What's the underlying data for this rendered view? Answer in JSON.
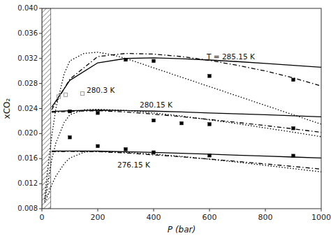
{
  "chart_data": {
    "type": "line",
    "xlabel": "P (bar)",
    "ylabel": "xCO₂",
    "xlim": [
      0,
      1000
    ],
    "ylim": [
      0.008,
      0.04
    ],
    "xticks": [
      0,
      200,
      400,
      600,
      800,
      1000
    ],
    "yticks": [
      0.008,
      0.012,
      0.016,
      {
        "value": 0.02,
        "label": "0.020"
      },
      0.024,
      0.028,
      0.032,
      0.036,
      {
        "value": 0.04,
        "label": "0.040"
      }
    ],
    "grid": false,
    "series": [
      {
        "type": "band",
        "color": "black",
        "x": [
          0,
          32
        ]
      },
      {
        "type": "line",
        "color": "black",
        "line_style": "solid",
        "x": [
          35,
          100,
          200,
          300,
          400,
          500,
          600,
          700,
          800,
          900,
          1000
        ],
        "values": [
          0.0242,
          0.0285,
          0.0313,
          0.032,
          0.0321,
          0.03195,
          0.03175,
          0.0315,
          0.0312,
          0.0309,
          0.0306
        ]
      },
      {
        "type": "line",
        "color": "black",
        "line_style": "dashdot",
        "x": [
          35,
          100,
          200,
          300,
          400,
          500,
          600,
          700,
          800,
          900,
          1000
        ],
        "values": [
          0.0238,
          0.0287,
          0.0323,
          0.0328,
          0.0327,
          0.0323,
          0.0317,
          0.0309,
          0.03,
          0.0289,
          0.0276
        ]
      },
      {
        "type": "line",
        "color": "black",
        "line_style": "dotted",
        "x": [
          10,
          20,
          35,
          50,
          80,
          100,
          150,
          200,
          250,
          300,
          400,
          500,
          600,
          700,
          800,
          900,
          1000
        ],
        "values": [
          0.0095,
          0.014,
          0.0195,
          0.024,
          0.0296,
          0.0316,
          0.0328,
          0.033,
          0.0326,
          0.032,
          0.0305,
          0.029,
          0.0275,
          0.026,
          0.0245,
          0.023,
          0.0215
        ]
      },
      {
        "type": "scatter",
        "color": "black",
        "marker": "square",
        "x": [
          300,
          400,
          600,
          900
        ],
        "values": [
          0.0318,
          0.0316,
          0.0292,
          0.0286
        ]
      },
      {
        "type": "line",
        "color": "black",
        "line_style": "solid",
        "x": [
          35,
          100,
          200,
          300,
          400,
          500,
          600,
          700,
          800,
          900,
          1000
        ],
        "values": [
          0.02355,
          0.02365,
          0.02375,
          0.02368,
          0.02358,
          0.02345,
          0.0233,
          0.02315,
          0.023,
          0.02285,
          0.02268
        ]
      },
      {
        "type": "line",
        "color": "black",
        "line_style": "dashdot",
        "x": [
          35,
          100,
          200,
          300,
          400,
          500,
          600,
          700,
          800,
          900,
          1000
        ],
        "values": [
          0.0234,
          0.02355,
          0.02365,
          0.02345,
          0.0231,
          0.0227,
          0.02225,
          0.02178,
          0.02128,
          0.02075,
          0.0202
        ]
      },
      {
        "type": "line",
        "color": "black",
        "line_style": "dotted",
        "x": [
          10,
          20,
          35,
          50,
          80,
          100,
          150,
          175,
          200,
          300,
          400,
          500,
          600,
          700,
          800,
          900,
          1000
        ],
        "values": [
          0.0092,
          0.0118,
          0.0158,
          0.0185,
          0.0218,
          0.023,
          0.0238,
          0.02385,
          0.02388,
          0.0237,
          0.0233,
          0.0228,
          0.0222,
          0.02158,
          0.0209,
          0.02022,
          0.0195
        ]
      },
      {
        "type": "scatter",
        "color": "black",
        "marker": "square",
        "x": [
          100,
          200,
          400,
          500,
          600,
          900
        ],
        "values": [
          0.02355,
          0.0233,
          0.0221,
          0.02165,
          0.0215,
          0.02085
        ]
      },
      {
        "type": "line",
        "color": "black",
        "line_style": "solid",
        "x": [
          35,
          100,
          200,
          300,
          400,
          500,
          600,
          700,
          800,
          900,
          1000
        ],
        "values": [
          0.0172,
          0.01722,
          0.0172,
          0.0171,
          0.01698,
          0.01685,
          0.0167,
          0.01655,
          0.0164,
          0.01625,
          0.0161
        ]
      },
      {
        "type": "line",
        "color": "black",
        "line_style": "dashdot",
        "x": [
          35,
          100,
          200,
          300,
          400,
          500,
          600,
          700,
          800,
          900,
          1000
        ],
        "values": [
          0.0171,
          0.01715,
          0.0171,
          0.0169,
          0.0166,
          0.01628,
          0.01592,
          0.01555,
          0.01515,
          0.01474,
          0.01432
        ]
      },
      {
        "type": "line",
        "color": "black",
        "line_style": "dotted",
        "x": [
          10,
          20,
          35,
          50,
          80,
          100,
          150,
          175,
          200,
          300,
          400,
          500,
          600,
          700,
          800,
          900,
          1000
        ],
        "values": [
          0.009,
          0.01,
          0.0118,
          0.0132,
          0.0152,
          0.0161,
          0.017,
          0.01715,
          0.01718,
          0.017,
          0.01672,
          0.01635,
          0.0159,
          0.01543,
          0.01492,
          0.0144,
          0.01388
        ]
      },
      {
        "type": "scatter",
        "color": "black",
        "marker": "square",
        "x": [
          100,
          200,
          300,
          400,
          600,
          900
        ],
        "values": [
          0.0194,
          0.018,
          0.0175,
          0.017,
          0.0165,
          0.01645
        ]
      },
      {
        "type": "scatter",
        "color": "#999999",
        "marker": "open-square",
        "x": [
          60,
          85,
          145
        ],
        "values": [
          0.0259,
          0.0262,
          0.0264
        ]
      }
    ],
    "annotations": [
      {
        "text": "T = 285.15 K",
        "x": 590,
        "y": 0.03215
      },
      {
        "text": "280.15 K",
        "x": 350,
        "y": 0.0245
      },
      {
        "text": "276.15 K",
        "x": 270,
        "y": 0.0149
      },
      {
        "text": "280.3 K",
        "x": 160,
        "y": 0.0268
      }
    ]
  }
}
